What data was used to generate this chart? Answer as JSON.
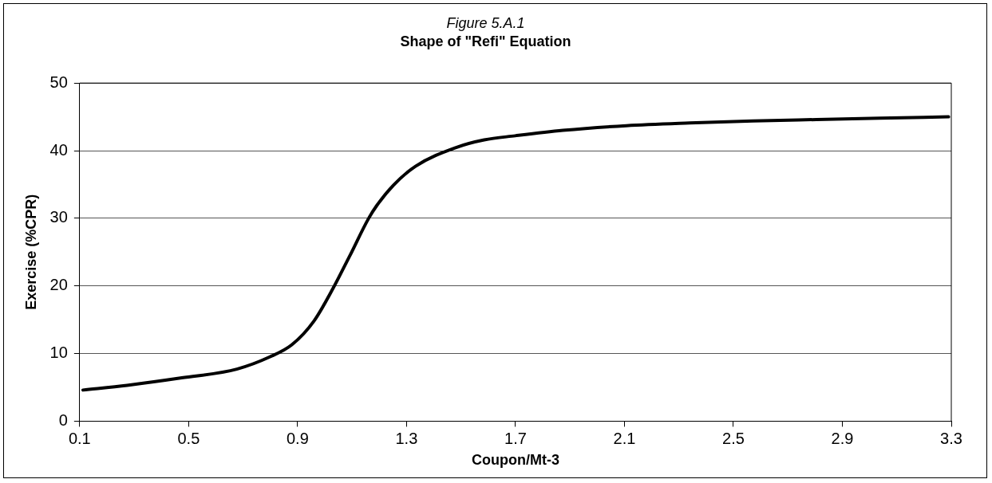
{
  "chart_data": {
    "type": "line",
    "title": "Figure 5.A.1",
    "subtitle": "Shape of \"Refi\" Equation",
    "xlabel": "Coupon/Mt-3",
    "ylabel": "Exercise (%CPR)",
    "x": [
      0.112,
      0.274,
      0.475,
      0.677,
      0.798,
      0.879,
      0.96,
      1.031,
      1.091,
      1.161,
      1.191,
      1.252,
      1.333,
      1.484,
      1.585,
      1.699,
      1.874,
      2.107,
      2.339,
      2.572,
      2.805,
      3.038,
      3.29
    ],
    "series": [
      {
        "color": "#000000",
        "values": [
          4.6,
          5.3,
          6.4,
          7.7,
          9.5,
          11.3,
          14.8,
          19.7,
          24.4,
          30.0,
          31.9,
          34.9,
          37.7,
          40.5,
          41.6,
          42.2,
          43.0,
          43.7,
          44.1,
          44.4,
          44.6,
          44.8,
          45.0
        ]
      }
    ],
    "xlim": [
      0.1,
      3.3
    ],
    "xticks": [
      0.1,
      0.5,
      0.9,
      1.3,
      1.7,
      2.1,
      2.5,
      2.9,
      3.3
    ],
    "ylim": [
      0,
      50
    ],
    "yticks": [
      0,
      10,
      20,
      30,
      40,
      50
    ],
    "grid": "y",
    "legend": false,
    "marker": "none",
    "line_style": "solid"
  }
}
